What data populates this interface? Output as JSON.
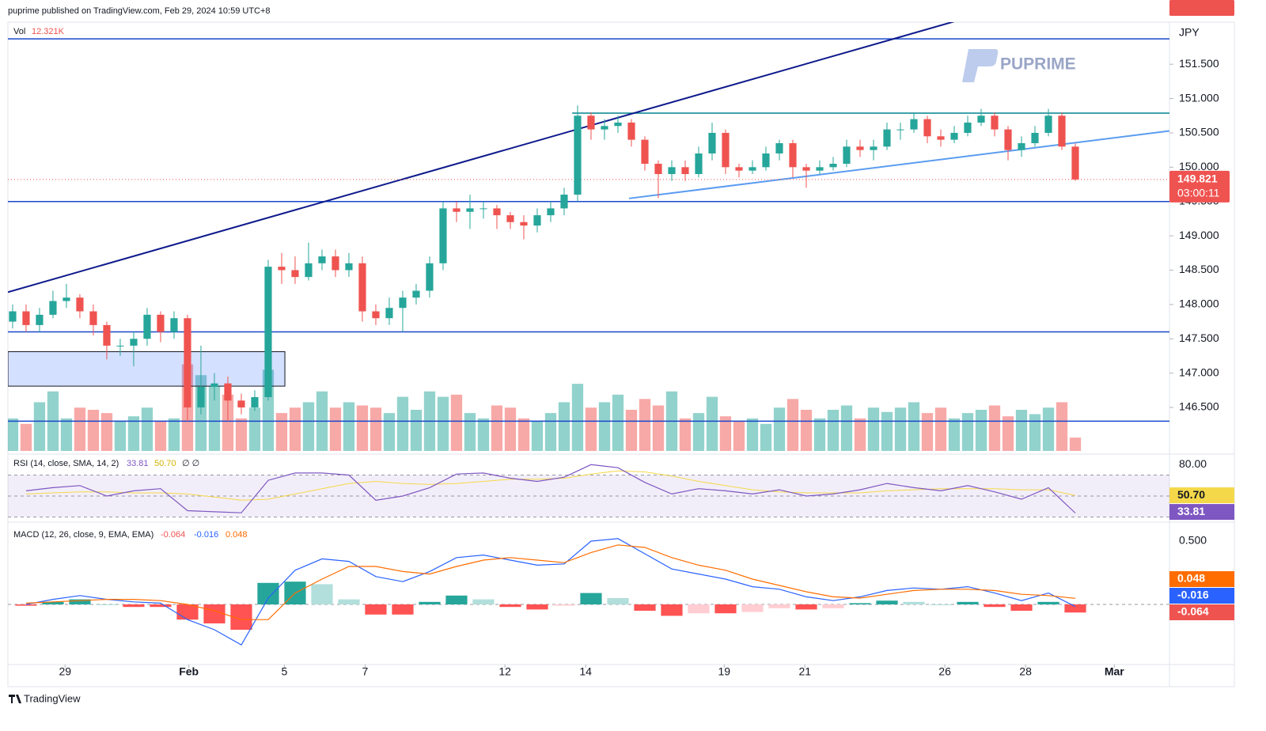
{
  "chart_data": {
    "type": "candlestick",
    "header": "puprime published on TradingView.com, Feb 29, 2024 10:59 UTC+8",
    "currency": "JPY",
    "watermark": "PUPRIME",
    "footer": "TradingView",
    "up_color": "#26a69a",
    "down_color": "#ef5350",
    "xlim": [
      -0.35,
      86
    ],
    "xticks": [
      {
        "value": 3.9,
        "label": "29"
      },
      {
        "value": 13.1,
        "label": "Feb"
      },
      {
        "value": 20.2,
        "label": "5"
      },
      {
        "value": 26.2,
        "label": "7"
      },
      {
        "value": 36.6,
        "label": "12"
      },
      {
        "value": 42.6,
        "label": "14"
      },
      {
        "value": 52.9,
        "label": "19"
      },
      {
        "value": 58.9,
        "label": "21"
      },
      {
        "value": 69.3,
        "label": "26"
      },
      {
        "value": 75.3,
        "label": "28"
      },
      {
        "value": 81.9,
        "label": "Mar"
      }
    ],
    "ylim": [
      145.843,
      152.09
    ],
    "yticks": [
      {
        "value": 146.5,
        "label": "146.500"
      },
      {
        "value": 147,
        "label": "147.000"
      },
      {
        "value": 147.5,
        "label": "147.500"
      },
      {
        "value": 148,
        "label": "148.000"
      },
      {
        "value": 148.5,
        "label": "148.500"
      },
      {
        "value": 149,
        "label": "149.000"
      },
      {
        "value": 149.5,
        "label": "149.500"
      },
      {
        "value": 150,
        "label": "150.000"
      },
      {
        "value": 150.5,
        "label": "150.500"
      },
      {
        "value": 151,
        "label": "151.000"
      },
      {
        "value": 151.5,
        "label": "151.500"
      }
    ],
    "open": [
      147.75,
      147.9,
      147.7,
      147.85,
      148.05,
      148.1,
      147.9,
      147.7,
      147.4,
      147.4,
      147.5,
      147.85,
      147.6,
      147.8,
      146.5,
      146.8,
      146.85,
      146.6,
      146.5,
      146.65,
      148.55,
      148.5,
      148.4,
      148.6,
      148.7,
      148.5,
      148.6,
      147.9,
      147.8,
      147.95,
      148.1,
      148.2,
      148.6,
      149.4,
      149.35,
      149.4,
      149.4,
      149.3,
      149.2,
      149.15,
      149.3,
      149.4,
      149.6,
      150.75,
      150.55,
      150.6,
      150.65,
      150.4,
      150.05,
      149.9,
      150.0,
      149.9,
      150.2,
      150.5,
      150.0,
      149.95,
      150.0,
      150.2,
      150.35,
      150.0,
      149.95,
      150.0,
      150.05,
      150.3,
      150.25,
      150.3,
      150.55,
      150.55,
      150.7,
      150.45,
      150.4,
      150.5,
      150.65,
      150.75,
      150.55,
      150.25,
      150.35,
      150.5,
      150.75,
      150.3
    ],
    "high": [
      148.0,
      148.0,
      147.95,
      148.2,
      148.3,
      148.15,
      148.0,
      147.75,
      147.5,
      147.6,
      147.95,
      147.9,
      147.9,
      147.85,
      147.4,
      147.0,
      146.95,
      146.7,
      146.75,
      148.65,
      148.75,
      148.7,
      148.9,
      148.8,
      148.8,
      148.75,
      148.7,
      148.0,
      148.1,
      148.2,
      148.3,
      148.7,
      149.5,
      149.5,
      149.6,
      149.5,
      149.45,
      149.35,
      149.3,
      149.4,
      149.5,
      149.7,
      150.9,
      150.8,
      150.7,
      150.75,
      150.7,
      150.45,
      150.1,
      150.1,
      150.1,
      150.3,
      150.65,
      150.55,
      150.05,
      150.1,
      150.3,
      150.4,
      150.4,
      150.05,
      150.1,
      150.15,
      150.4,
      150.4,
      150.4,
      150.65,
      150.65,
      150.8,
      150.75,
      150.55,
      150.6,
      150.75,
      150.85,
      150.8,
      150.6,
      150.45,
      150.6,
      150.85,
      150.8,
      150.35
    ],
    "low": [
      147.65,
      147.6,
      147.6,
      147.8,
      147.95,
      147.8,
      147.55,
      147.2,
      147.25,
      147.1,
      147.4,
      147.45,
      147.5,
      146.3,
      146.4,
      146.6,
      146.3,
      146.4,
      146.45,
      146.6,
      148.3,
      148.3,
      148.35,
      148.5,
      148.4,
      148.4,
      147.75,
      147.7,
      147.7,
      147.6,
      148.0,
      148.1,
      148.5,
      149.2,
      149.1,
      149.25,
      149.1,
      149.1,
      148.95,
      149.05,
      149.2,
      149.3,
      149.5,
      150.4,
      150.4,
      150.5,
      150.3,
      149.95,
      149.55,
      149.8,
      149.8,
      149.85,
      150.1,
      149.9,
      149.85,
      149.9,
      149.95,
      150.1,
      149.85,
      149.7,
      149.9,
      149.95,
      150.0,
      150.15,
      150.1,
      150.25,
      150.4,
      150.5,
      150.35,
      150.3,
      150.35,
      150.45,
      150.6,
      150.45,
      150.1,
      150.15,
      150.3,
      150.45,
      150.25,
      149.8
    ],
    "close": [
      147.9,
      147.7,
      147.85,
      148.05,
      148.1,
      147.9,
      147.7,
      147.4,
      147.4,
      147.5,
      147.85,
      147.6,
      147.8,
      146.5,
      146.8,
      146.85,
      146.6,
      146.5,
      146.65,
      148.55,
      148.5,
      148.4,
      148.6,
      148.7,
      148.5,
      148.6,
      147.9,
      147.8,
      147.95,
      148.1,
      148.2,
      148.6,
      149.4,
      149.35,
      149.4,
      149.4,
      149.3,
      149.2,
      149.15,
      149.3,
      149.4,
      149.6,
      150.75,
      150.55,
      150.6,
      150.65,
      150.4,
      150.05,
      149.9,
      150.0,
      149.9,
      150.2,
      150.5,
      150.0,
      149.95,
      150.0,
      150.2,
      150.35,
      150.0,
      149.95,
      150.0,
      150.05,
      150.3,
      150.25,
      150.3,
      150.55,
      150.55,
      150.7,
      150.45,
      150.4,
      150.5,
      150.65,
      150.75,
      150.55,
      150.25,
      150.35,
      150.5,
      150.75,
      150.3,
      149.821
    ],
    "countdown": "03:00:11",
    "volume": {
      "label": "Vol",
      "value_label": "12.321K",
      "ylim": [
        0,
        95
      ],
      "values": [
        30,
        25,
        45,
        55,
        30,
        40,
        38,
        35,
        28,
        32,
        40,
        28,
        30,
        80,
        70,
        60,
        52,
        30,
        40,
        75,
        35,
        40,
        45,
        55,
        40,
        45,
        42,
        40,
        35,
        50,
        38,
        55,
        50,
        52,
        35,
        30,
        42,
        40,
        30,
        28,
        35,
        45,
        62,
        40,
        45,
        52,
        38,
        48,
        42,
        55,
        30,
        35,
        50,
        32,
        28,
        30,
        25,
        40,
        48,
        38,
        30,
        38,
        42,
        30,
        40,
        36,
        40,
        45,
        35,
        40,
        30,
        35,
        38,
        42,
        32,
        38,
        34,
        40,
        45,
        12.321
      ]
    },
    "drawings": {
      "horizontal": [
        {
          "value": 151.87,
          "color": "#1848cc"
        },
        {
          "value": 150.788,
          "color": "#00838f",
          "from": 41.6
        },
        {
          "value": 149.5,
          "color": "#1848cc"
        },
        {
          "value": 147.6,
          "color": "#1848cc"
        },
        {
          "value": 146.3,
          "color": "#1848cc"
        }
      ],
      "trend": [
        {
          "x": [
            -0.35,
            70.24
          ],
          "y": [
            148.18,
            152.136
          ],
          "color": "#0d1a8a"
        },
        {
          "x": [
            45.82,
            86
          ],
          "y": [
            149.545,
            150.528
          ],
          "color": "#5b9cf0"
        }
      ],
      "zone": {
        "x": [
          -0.35,
          20.24
        ],
        "y": [
          146.81,
          147.312
        ],
        "color": "#2962ff"
      }
    },
    "rsi": {
      "title": "RSI (14, close, SMA, 14, 2)",
      "value_label": "33.81",
      "sma_label": "50.70",
      "extra": "∅ ∅",
      "ylim": [
        26.6,
        87
      ],
      "yticks": [
        {
          "value": 80,
          "label": "80.00"
        }
      ],
      "bands": [
        70,
        50,
        30
      ],
      "color": "#7e57c2",
      "sma_color": "#f5d84a",
      "x": [
        1,
        3,
        5,
        7,
        9,
        11,
        13,
        15,
        17,
        19,
        21,
        23,
        25,
        27,
        29,
        31,
        33,
        35,
        37,
        39,
        41,
        43,
        45,
        47,
        49,
        51,
        53,
        55,
        57,
        59,
        61,
        63,
        65,
        67,
        69,
        71,
        73,
        75,
        77,
        79
      ],
      "values": [
        55,
        58,
        60,
        50,
        55,
        57,
        36,
        35,
        34,
        65,
        72,
        72,
        70,
        46,
        50,
        58,
        71,
        72,
        67,
        64,
        68,
        80,
        77,
        63,
        52,
        57,
        55,
        52,
        56,
        50,
        52,
        56,
        62,
        58,
        55,
        60,
        54,
        47,
        58,
        33.81
      ],
      "sma": [
        52,
        53,
        54,
        54,
        53,
        53,
        52,
        49,
        46,
        47,
        52,
        57,
        62,
        64,
        62,
        61,
        62,
        64,
        66,
        66,
        67,
        71,
        74,
        73,
        69,
        64,
        60,
        56,
        54,
        53,
        53,
        53,
        55,
        56,
        57,
        57,
        57,
        56,
        56,
        50.7
      ]
    },
    "macd": {
      "title": "MACD (12, 26, close, 9, EMA, EMA)",
      "ylim": [
        -0.475,
        0.6
      ],
      "yticks": [
        {
          "value": 0.5,
          "label": "0.500"
        }
      ],
      "macd_color": "#2962ff",
      "signal_color": "#ff6d00",
      "x": [
        1,
        3,
        5,
        7,
        9,
        11,
        13,
        15,
        17,
        19,
        21,
        23,
        25,
        27,
        29,
        31,
        33,
        35,
        37,
        39,
        41,
        43,
        45,
        47,
        49,
        51,
        53,
        55,
        57,
        59,
        61,
        63,
        65,
        67,
        69,
        71,
        73,
        75,
        77,
        79
      ],
      "macd": [
        0.0,
        0.04,
        0.07,
        0.04,
        0.02,
        0.01,
        -0.12,
        -0.2,
        -0.32,
        0.05,
        0.27,
        0.36,
        0.34,
        0.22,
        0.18,
        0.26,
        0.37,
        0.39,
        0.35,
        0.31,
        0.32,
        0.5,
        0.52,
        0.4,
        0.28,
        0.24,
        0.2,
        0.14,
        0.12,
        0.06,
        0.03,
        0.06,
        0.11,
        0.13,
        0.12,
        0.14,
        0.09,
        0.03,
        0.09,
        -0.016
      ],
      "signal": [
        0.01,
        0.02,
        0.03,
        0.04,
        0.04,
        0.03,
        0.0,
        -0.05,
        -0.12,
        -0.12,
        0.09,
        0.2,
        0.3,
        0.3,
        0.26,
        0.24,
        0.3,
        0.35,
        0.37,
        0.35,
        0.33,
        0.41,
        0.47,
        0.45,
        0.37,
        0.31,
        0.27,
        0.2,
        0.15,
        0.1,
        0.06,
        0.05,
        0.08,
        0.11,
        0.12,
        0.12,
        0.11,
        0.08,
        0.07,
        0.048
      ],
      "hist": [
        -0.01,
        0.02,
        0.04,
        0.0,
        -0.02,
        -0.02,
        -0.12,
        -0.15,
        -0.2,
        0.17,
        0.18,
        0.16,
        0.04,
        -0.08,
        -0.08,
        0.02,
        0.07,
        0.04,
        -0.02,
        -0.04,
        -0.01,
        0.09,
        0.05,
        -0.05,
        -0.09,
        -0.07,
        -0.07,
        -0.06,
        -0.03,
        -0.04,
        -0.03,
        0.01,
        0.03,
        0.02,
        0.0,
        0.02,
        -0.02,
        -0.05,
        0.02,
        -0.064
      ]
    }
  }
}
